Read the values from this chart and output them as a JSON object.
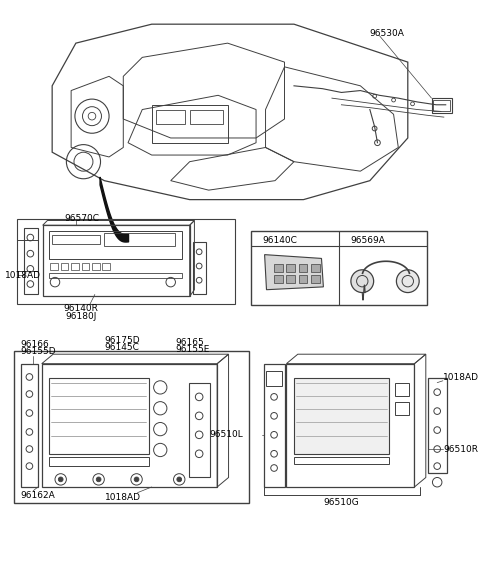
{
  "bg_color": "#ffffff",
  "line_color": "#404040",
  "label_color": "#000000",
  "fs": 6.5,
  "labels": {
    "top_right": "96530A",
    "mid_left_top": "96570C",
    "mid_left_bolt": "1018AD",
    "mid_left_b1": "96140R",
    "mid_left_b2": "96180J",
    "box_l": "96140C",
    "box_r": "96569A",
    "bl_1": "96166",
    "bl_2": "96155D",
    "bl_3": "96175D",
    "bl_4": "96145C",
    "bl_5": "96165",
    "bl_6": "96155E",
    "bl_7": "96162A",
    "bl_8": "1018AD",
    "br_1": "1018AD",
    "br_2": "96510L",
    "br_3": "96510R",
    "br_4": "96510G"
  }
}
